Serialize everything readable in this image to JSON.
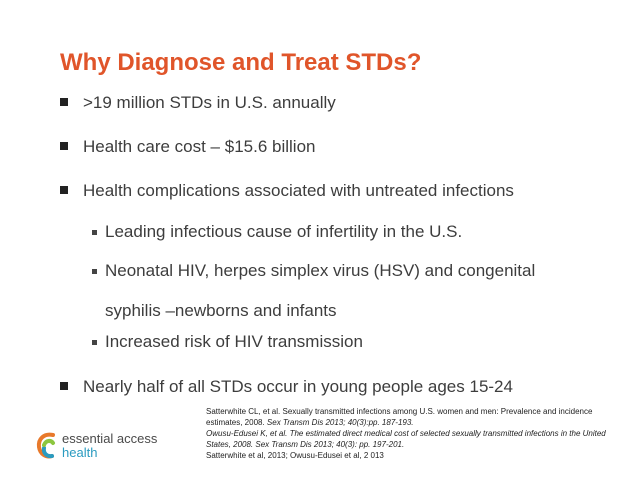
{
  "title": "Why Diagnose and Treat STDs?",
  "bullets": [
    {
      "text": ">19 million STDs in U.S. annually"
    },
    {
      "text": "Health care cost – $15.6 billion"
    },
    {
      "text": "Health complications associated with untreated infections"
    },
    {
      "text": "Nearly half of all STDs occur in young people ages 15-24"
    }
  ],
  "sub_bullets": [
    {
      "text": "Leading infectious cause of infertility in the U.S."
    },
    {
      "text": "Neonatal HIV, herpes simplex virus (HSV) and congenital",
      "text2": "syphilis –newborns and infants"
    },
    {
      "text": "Increased risk of HIV transmission"
    }
  ],
  "citations": {
    "c1_plain": "Satterwhite CL, et al. Sexually transmitted infections among U.S. women and men: Prevalence and incidence estimates, 2008. ",
    "c1_italic": "Sex Transm Dis 2013; 40(3):pp. 187-193.",
    "c2_italic": "Owusu-Edusei K, et al. The estimated direct medical cost of selected sexually transmitted infections in the United States, 2008. Sex Transm Dis 2013; 40(3): pp. 197-201.",
    "c3": "Satterwhite et al, 2013; Owusu-Edusei et al, 2          013"
  },
  "logo": {
    "line1": "essential access",
    "line2": "health",
    "colors": {
      "orange": "#e8792b",
      "blue": "#2a9bc0",
      "green": "#8cc63f"
    }
  }
}
